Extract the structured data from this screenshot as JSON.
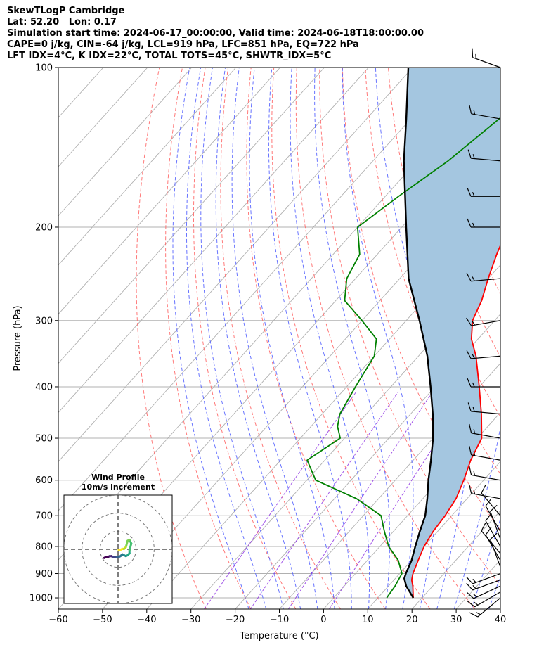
{
  "header": {
    "lines": [
      "SkewTLogP Cambridge",
      "Lat: 52.20   Lon: 0.17",
      "Simulation start time: 2024-06-17_00:00:00, Valid time: 2024-06-18T18:00:00.00",
      "CAPE=0 j/kg, CIN=-64 j/kg, LCL=919 hPa, LFC=851 hPa, EQ=722 hPa",
      "LFT IDX=4°C, K IDX=22°C, TOTAL TOTS=45°C, SHWTR_IDX=5°C"
    ]
  },
  "chart_data": [
    {
      "type": "line",
      "title": "",
      "xlabel": "Temperature (°C)",
      "ylabel": "Pressure (hPa)",
      "xlim": [
        -60,
        40
      ],
      "ylim": [
        1050,
        100
      ],
      "yscale": "log",
      "skew": true,
      "grid": true,
      "x_ticks": [
        -60,
        -50,
        -40,
        -30,
        -20,
        -10,
        0,
        10,
        20,
        30,
        40
      ],
      "x_tick_labels": [
        "−60",
        "−50",
        "−40",
        "−30",
        "−20",
        "−10",
        "0",
        "10",
        "20",
        "30",
        "40"
      ],
      "y_ticks": [
        1000,
        900,
        800,
        700,
        600,
        500,
        400,
        300,
        200,
        100
      ],
      "y_tick_labels": [
        "1000",
        "900",
        "800",
        "700",
        "600",
        "500",
        "400",
        "300",
        "200",
        "100"
      ],
      "colors": {
        "temperature": "#ff0000",
        "dewpoint": "#008000",
        "parcel": "#000000",
        "shade": "#a4c6e0",
        "dry_adiabat": "#ff6a6a",
        "moist_adiabat": "#4d5cff",
        "mixing_ratio": "#8a2be2",
        "isotherm": "#b0b0b0"
      },
      "series": [
        {
          "key": "temperature",
          "pressure": [
            1000,
            950,
            925,
            900,
            850,
            800,
            750,
            700,
            650,
            600,
            550,
            500,
            450,
            400,
            350,
            325,
            300,
            275,
            250,
            225,
            200,
            175,
            150,
            125,
            100
          ],
          "values": [
            18,
            15.5,
            14,
            13,
            11.5,
            10,
            9,
            8.5,
            7.5,
            5.5,
            3,
            1,
            -4,
            -10,
            -17,
            -21.5,
            -25,
            -27,
            -30,
            -33,
            -36,
            -38,
            -42,
            -44,
            -47
          ]
        },
        {
          "key": "dewpoint",
          "pressure": [
            1000,
            950,
            925,
            900,
            850,
            800,
            750,
            700,
            650,
            600,
            550,
            500,
            475,
            450,
            400,
            350,
            325,
            300,
            275,
            250,
            225,
            200,
            175,
            150,
            125,
            100
          ],
          "values": [
            12,
            11.5,
            11,
            10.5,
            7,
            2,
            -2,
            -6,
            -15,
            -28,
            -34,
            -31,
            -34,
            -36,
            -38,
            -40,
            -43,
            -50,
            -58,
            -62,
            -64,
            -70,
            -67,
            -63,
            -60,
            -58
          ]
        },
        {
          "key": "parcel",
          "pressure": [
            1000,
            950,
            919,
            900,
            850,
            800,
            750,
            700,
            650,
            600,
            550,
            500,
            450,
            400,
            350,
            300,
            250,
            200,
            150,
            125,
            100
          ],
          "values": [
            18,
            14,
            12,
            11.4,
            10,
            8,
            6,
            4,
            1,
            -2.5,
            -6,
            -10,
            -15,
            -21,
            -28,
            -37,
            -48,
            -59,
            -73,
            -81,
            -91
          ]
        }
      ],
      "wind_barbs": {
        "pressure": [
          1000,
          975,
          950,
          925,
          900,
          875,
          850,
          825,
          800,
          775,
          750,
          700,
          650,
          600,
          550,
          500,
          450,
          400,
          350,
          300,
          250,
          200,
          175,
          150,
          125,
          100
        ],
        "speed_kt": [
          15,
          15,
          15,
          15,
          15,
          10,
          10,
          10,
          10,
          10,
          10,
          10,
          15,
          15,
          15,
          15,
          15,
          15,
          15,
          15,
          15,
          15,
          15,
          15,
          15,
          15
        ],
        "direction_deg": [
          230,
          240,
          245,
          250,
          250,
          340,
          330,
          320,
          330,
          340,
          330,
          320,
          280,
          280,
          280,
          280,
          275,
          270,
          265,
          260,
          265,
          270,
          270,
          275,
          280,
          290
        ]
      }
    },
    {
      "type": "line",
      "title": "Wind Profile",
      "subtitle": "10m/s increment",
      "xlim": [
        -15,
        15
      ],
      "ylim": [
        -15,
        15
      ],
      "rings": [
        5,
        10,
        15
      ],
      "colormap": "viridis",
      "u": [
        -3,
        -2,
        -1,
        0,
        1,
        2,
        3,
        4,
        5,
        6,
        7,
        8,
        9,
        10,
        11,
        11,
        12,
        11,
        10,
        9,
        8,
        7,
        6,
        5
      ],
      "v": [
        -4,
        -3.5,
        -3.5,
        -3,
        -3,
        -3.5,
        -3.5,
        -3.5,
        -3.5,
        -3,
        -2,
        -2.5,
        -3,
        -2.5,
        -1.5,
        0,
        4,
        6,
        5.5,
        2,
        1,
        1,
        0.5,
        0.5
      ]
    }
  ]
}
